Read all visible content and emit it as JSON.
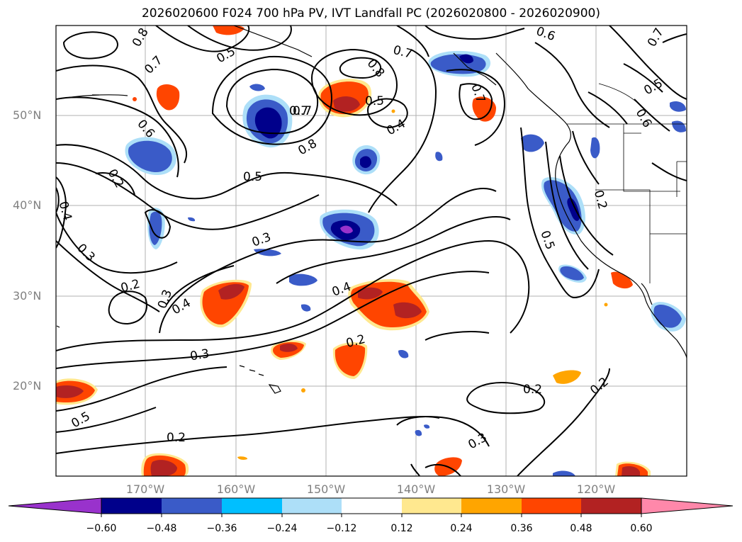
{
  "title": "2026020600 F024 700 hPa PV, IVT Landfall PC (2026020800 - 2026020900)",
  "lat_labels": [
    "50°N",
    "40°N",
    "30°N",
    "20°N"
  ],
  "lon_labels": [
    "170°W",
    "160°W",
    "150°W",
    "140°W",
    "130°W",
    "120°W"
  ],
  "contour_labels": [
    "0.8",
    "0.7",
    "0.5",
    "0.6",
    "0.7",
    "0.8",
    "0.7",
    "0.5",
    "0.7",
    "0.8",
    "0.5",
    "0.4",
    "0.6",
    "0.5",
    "0.2",
    "0.4",
    "0.3",
    "0.3",
    "0.2",
    "0.3",
    "0.4",
    "0.4",
    "0.3",
    "0.2",
    "0.5",
    "0.2",
    "0.2",
    "0.2",
    "0.2",
    "0.3",
    "0.7",
    "0.6",
    "0.5",
    "0.7"
  ],
  "colorbar": {
    "ticks": [
      "−0.60",
      "−0.48",
      "−0.36",
      "−0.24",
      "−0.12",
      "0.12",
      "0.24",
      "0.36",
      "0.48",
      "0.60"
    ],
    "colors": [
      "#9932CC",
      "#00008B",
      "#3A5BC8",
      "#00BFFF",
      "#ADDFF8",
      "#FFFFFF",
      "#FFE88F",
      "#FFA500",
      "#FF4500",
      "#B22222",
      "#FF88AA"
    ]
  }
}
